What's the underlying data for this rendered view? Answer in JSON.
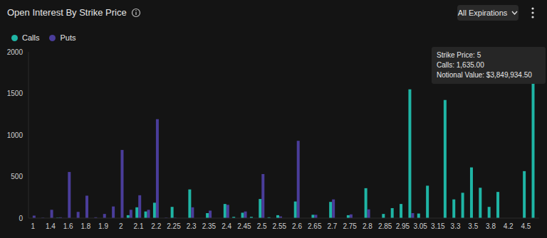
{
  "chart_data": {
    "type": "bar",
    "title": "Open Interest By Strike Price",
    "dropdown": "All Expirations",
    "tooltip": [
      "Strike Price: 5",
      "Calls: 1,635.00",
      "Notional Value: $3,849,934.50"
    ],
    "categories": [
      "1",
      null,
      "1.4",
      null,
      "1.6",
      null,
      "1.8",
      null,
      "1.9",
      null,
      "2",
      null,
      "2.1",
      null,
      "2.2",
      null,
      "2.25",
      null,
      "2.3",
      null,
      "2.35",
      null,
      "2.4",
      null,
      "2.45",
      null,
      "2.5",
      null,
      "2.55",
      null,
      "2.6",
      null,
      "2.65",
      null,
      "2.7",
      null,
      "2.75",
      null,
      "2.8",
      null,
      "2.85",
      null,
      "2.95",
      null,
      "3.05",
      null,
      "3.15",
      null,
      "3.3",
      null,
      "3.5",
      null,
      "3.8",
      null,
      "4.2",
      null,
      "4.5",
      null
    ],
    "series": [
      {
        "name": "Calls",
        "color": "#1fb5a5",
        "values": [
          0,
          0,
          0,
          5,
          0,
          0,
          0,
          0,
          0,
          0,
          0,
          35,
          130,
          80,
          185,
          0,
          135,
          0,
          345,
          0,
          60,
          0,
          170,
          15,
          65,
          15,
          230,
          10,
          35,
          0,
          200,
          0,
          40,
          0,
          195,
          0,
          35,
          0,
          360,
          0,
          50,
          120,
          170,
          1550,
          55,
          390,
          0,
          1420,
          225,
          305,
          610,
          365,
          135,
          315,
          0,
          0,
          565,
          1635
        ]
      },
      {
        "name": "Puts",
        "color": "#4a3d9a",
        "values": [
          30,
          5,
          100,
          10,
          555,
          75,
          270,
          10,
          50,
          140,
          820,
          100,
          275,
          100,
          1190,
          5,
          5,
          0,
          130,
          0,
          90,
          0,
          160,
          0,
          80,
          0,
          530,
          0,
          20,
          0,
          930,
          0,
          40,
          0,
          225,
          0,
          45,
          0,
          105,
          0,
          0,
          0,
          0,
          60,
          0,
          0,
          0,
          0,
          0,
          0,
          0,
          0,
          0,
          0,
          0,
          0,
          0,
          0
        ]
      }
    ],
    "ylim": [
      0,
      2000
    ],
    "yticks": [
      0,
      500,
      1000,
      1500,
      2000
    ],
    "grid": false,
    "legend": "upper left"
  }
}
